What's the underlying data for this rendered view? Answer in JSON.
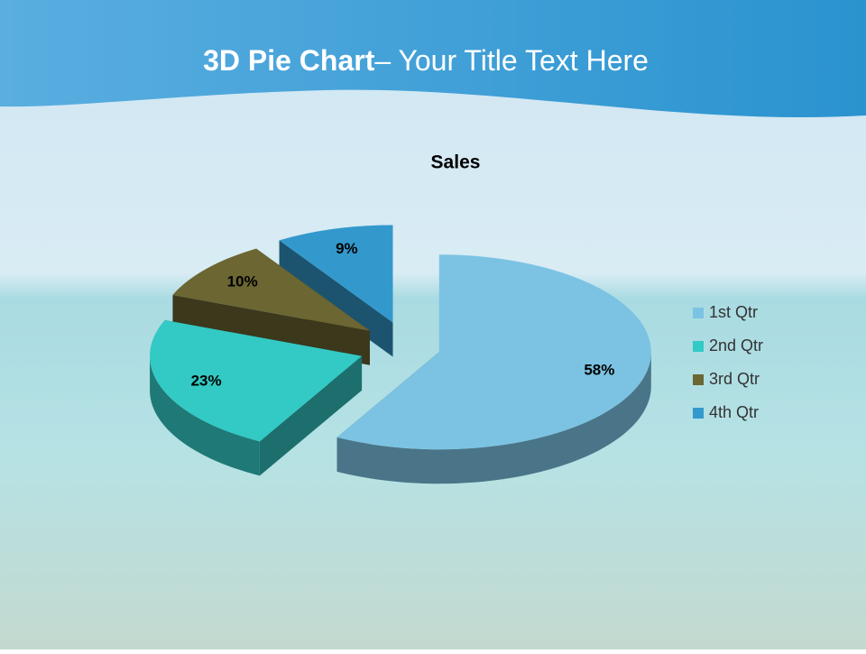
{
  "slide_title": {
    "bold": "3D Pie Chart",
    "rest": "– Your Title Text Here"
  },
  "chart_data": {
    "type": "pie3d",
    "title": "Sales",
    "categories": [
      "1st Qtr",
      "2nd Qtr",
      "3rd Qtr",
      "4th Qtr"
    ],
    "values": [
      58,
      23,
      10,
      9
    ],
    "value_labels": [
      "58%",
      "23%",
      "10%",
      "9%"
    ],
    "colors": [
      "#7cc3e3",
      "#33c9c4",
      "#6b6632",
      "#3399cc"
    ],
    "legend": "right"
  }
}
